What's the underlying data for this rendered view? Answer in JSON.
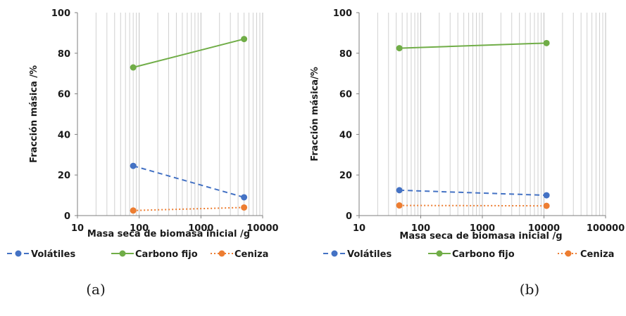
{
  "chart_data": [
    {
      "type": "line",
      "x_scale": "log",
      "xlim": [
        10,
        10000
      ],
      "ylim": [
        0,
        100
      ],
      "xticks": [
        10,
        100,
        1000,
        10000
      ],
      "xtick_labels": [
        "10",
        "100",
        "1000",
        "10000"
      ],
      "yticks": [
        0,
        20,
        40,
        60,
        80,
        100
      ],
      "ytick_labels": [
        "0",
        "20",
        "40",
        "60",
        "80",
        "100"
      ],
      "xlabel": "Masa seca de biomasa inicial /g",
      "ylabel": "Fracción másica /%",
      "grid": "vertical-minor-and-major",
      "legend_position": "bottom",
      "panel_label": "(a)",
      "series": [
        {
          "name": "Volátiles",
          "color": "#4472C4",
          "dash": "dashed",
          "x": [
            80,
            5000
          ],
          "y": [
            24.5,
            9
          ]
        },
        {
          "name": "Carbono fijo",
          "color": "#70AD47",
          "dash": "solid",
          "x": [
            80,
            5000
          ],
          "y": [
            73,
            87
          ]
        },
        {
          "name": "Ceniza",
          "color": "#ED7D31",
          "dash": "dotted",
          "x": [
            80,
            5000
          ],
          "y": [
            2.5,
            4
          ]
        }
      ]
    },
    {
      "type": "line",
      "x_scale": "log",
      "xlim": [
        10,
        100000
      ],
      "ylim": [
        0,
        100
      ],
      "xticks": [
        10,
        100,
        1000,
        10000,
        100000
      ],
      "xtick_labels": [
        "10",
        "100",
        "1000",
        "10000",
        "100000"
      ],
      "yticks": [
        0,
        20,
        40,
        60,
        80,
        100
      ],
      "ytick_labels": [
        "0",
        "20",
        "40",
        "60",
        "80",
        "100"
      ],
      "xlabel": "Masa seca de biomasa inicial /g",
      "ylabel": "Fracción másica/%",
      "grid": "vertical-minor-and-major",
      "legend_position": "bottom",
      "panel_label": "(b)",
      "series": [
        {
          "name": "Volátiles",
          "color": "#4472C4",
          "dash": "dashed",
          "x": [
            45,
            11000
          ],
          "y": [
            12.5,
            10
          ]
        },
        {
          "name": "Carbono fijo",
          "color": "#70AD47",
          "dash": "solid",
          "x": [
            45,
            11000
          ],
          "y": [
            82.5,
            85
          ]
        },
        {
          "name": "Ceniza",
          "color": "#ED7D31",
          "dash": "dotted",
          "x": [
            45,
            11000
          ],
          "y": [
            5,
            4.8
          ]
        }
      ]
    }
  ]
}
